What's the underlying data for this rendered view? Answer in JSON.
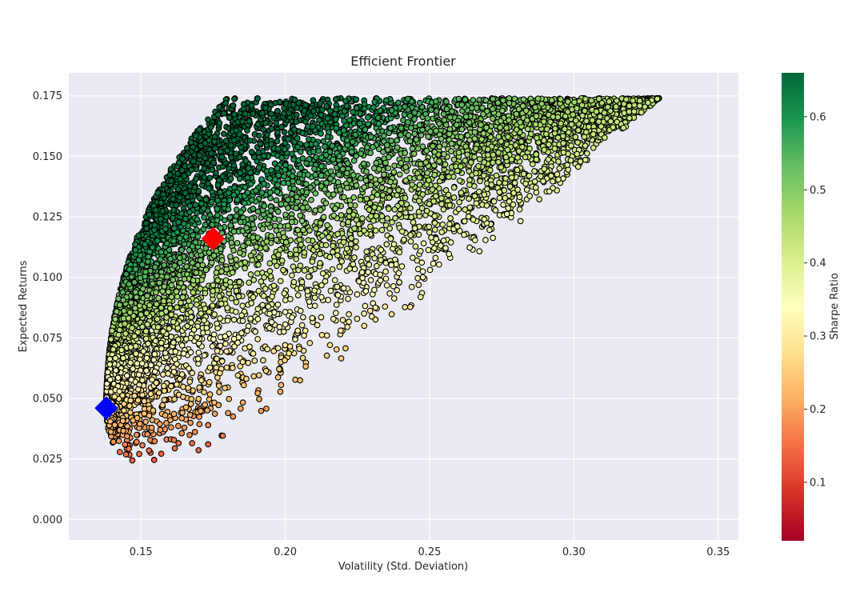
{
  "chart_data": {
    "type": "scatter",
    "title": "Efficient Frontier",
    "xlabel": "Volatility (Std. Deviation)",
    "ylabel": "Expected Returns",
    "xlim": [
      0.125,
      0.357
    ],
    "ylim": [
      -0.0085,
      0.1845
    ],
    "x_ticks": [
      "0.15",
      "0.20",
      "0.25",
      "0.30",
      "0.35"
    ],
    "x_tick_values": [
      0.15,
      0.2,
      0.25,
      0.3,
      0.35
    ],
    "y_ticks": [
      "0.000",
      "0.025",
      "0.050",
      "0.075",
      "0.100",
      "0.125",
      "0.150",
      "0.175"
    ],
    "y_tick_values": [
      0.0,
      0.025,
      0.05,
      0.075,
      0.1,
      0.125,
      0.15,
      0.175
    ],
    "grid": true,
    "background": "#eaeaf2",
    "colormap": "RdYlGn",
    "colorbar": {
      "label": "Sharpe Ratio",
      "range": [
        0.02,
        0.66
      ],
      "ticks": [
        "0.1",
        "0.2",
        "0.3",
        "0.4",
        "0.5",
        "0.6"
      ],
      "tick_values": [
        0.1,
        0.2,
        0.3,
        0.4,
        0.5,
        0.6
      ]
    },
    "simulated_portfolios": {
      "count": 8000,
      "min_volatility": 0.138,
      "max_volatility": 0.344,
      "min_return": 0.004,
      "max_return": 0.174,
      "point_edge_color": "#000000"
    },
    "highlighted_portfolios": [
      {
        "x": 0.175,
        "y": 0.116,
        "color": "#ff0000",
        "marker": "diamond"
      },
      {
        "x": 0.138,
        "y": 0.046,
        "color": "#0000ff",
        "marker": "diamond"
      }
    ]
  }
}
